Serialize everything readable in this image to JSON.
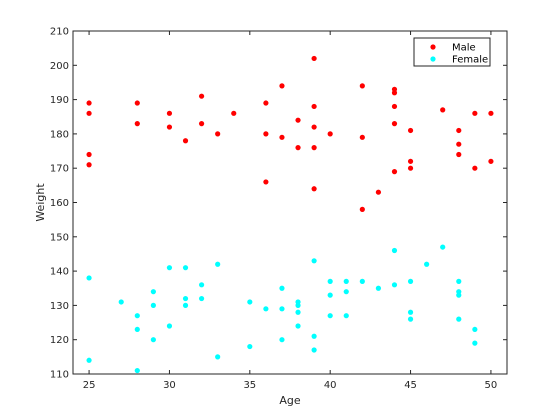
{
  "chart_data": {
    "type": "scatter",
    "title": "",
    "xlabel": "Age",
    "ylabel": "Weight",
    "xlim": [
      24,
      51
    ],
    "ylim": [
      110,
      210
    ],
    "xticks": [
      25,
      30,
      35,
      40,
      45,
      50
    ],
    "yticks": [
      110,
      120,
      130,
      140,
      150,
      160,
      170,
      180,
      190,
      200,
      210
    ],
    "grid": false,
    "legend_position": "top-right",
    "series": [
      {
        "name": "Male",
        "color": "#ff0000",
        "points": [
          [
            25,
            189
          ],
          [
            25,
            186
          ],
          [
            25,
            174
          ],
          [
            25,
            171
          ],
          [
            28,
            189
          ],
          [
            28,
            183
          ],
          [
            30,
            186
          ],
          [
            30,
            182
          ],
          [
            31,
            178
          ],
          [
            32,
            191
          ],
          [
            32,
            183
          ],
          [
            33,
            180
          ],
          [
            34,
            186
          ],
          [
            36,
            189
          ],
          [
            36,
            180
          ],
          [
            36,
            166
          ],
          [
            37,
            194
          ],
          [
            37,
            179
          ],
          [
            38,
            184
          ],
          [
            38,
            176
          ],
          [
            39,
            202
          ],
          [
            39,
            188
          ],
          [
            39,
            182
          ],
          [
            39,
            176
          ],
          [
            39,
            164
          ],
          [
            40,
            180
          ],
          [
            42,
            194
          ],
          [
            42,
            179
          ],
          [
            42,
            158
          ],
          [
            43,
            163
          ],
          [
            44,
            193
          ],
          [
            44,
            192
          ],
          [
            44,
            188
          ],
          [
            44,
            183
          ],
          [
            44,
            169
          ],
          [
            45,
            181
          ],
          [
            45,
            172
          ],
          [
            45,
            170
          ],
          [
            47,
            187
          ],
          [
            48,
            181
          ],
          [
            48,
            177
          ],
          [
            48,
            174
          ],
          [
            49,
            186
          ],
          [
            49,
            170
          ],
          [
            50,
            186
          ],
          [
            50,
            172
          ]
        ]
      },
      {
        "name": "Female",
        "color": "#00ffff",
        "points": [
          [
            25,
            138
          ],
          [
            25,
            114
          ],
          [
            27,
            131
          ],
          [
            28,
            127
          ],
          [
            28,
            123
          ],
          [
            28,
            111
          ],
          [
            29,
            134
          ],
          [
            29,
            130
          ],
          [
            29,
            120
          ],
          [
            30,
            141
          ],
          [
            30,
            124
          ],
          [
            31,
            141
          ],
          [
            31,
            132
          ],
          [
            31,
            130
          ],
          [
            32,
            136
          ],
          [
            32,
            132
          ],
          [
            33,
            142
          ],
          [
            33,
            115
          ],
          [
            35,
            131
          ],
          [
            35,
            118
          ],
          [
            36,
            129
          ],
          [
            37,
            135
          ],
          [
            37,
            129
          ],
          [
            37,
            120
          ],
          [
            38,
            131
          ],
          [
            38,
            130
          ],
          [
            38,
            128
          ],
          [
            38,
            124
          ],
          [
            39,
            143
          ],
          [
            39,
            121
          ],
          [
            39,
            117
          ],
          [
            40,
            137
          ],
          [
            40,
            133
          ],
          [
            40,
            127
          ],
          [
            41,
            137
          ],
          [
            41,
            134
          ],
          [
            41,
            127
          ],
          [
            42,
            137
          ],
          [
            43,
            135
          ],
          [
            44,
            146
          ],
          [
            44,
            136
          ],
          [
            45,
            137
          ],
          [
            45,
            128
          ],
          [
            45,
            126
          ],
          [
            46,
            142
          ],
          [
            47,
            147
          ],
          [
            48,
            137
          ],
          [
            48,
            134
          ],
          [
            48,
            133
          ],
          [
            48,
            126
          ],
          [
            49,
            123
          ],
          [
            49,
            119
          ]
        ]
      }
    ]
  }
}
